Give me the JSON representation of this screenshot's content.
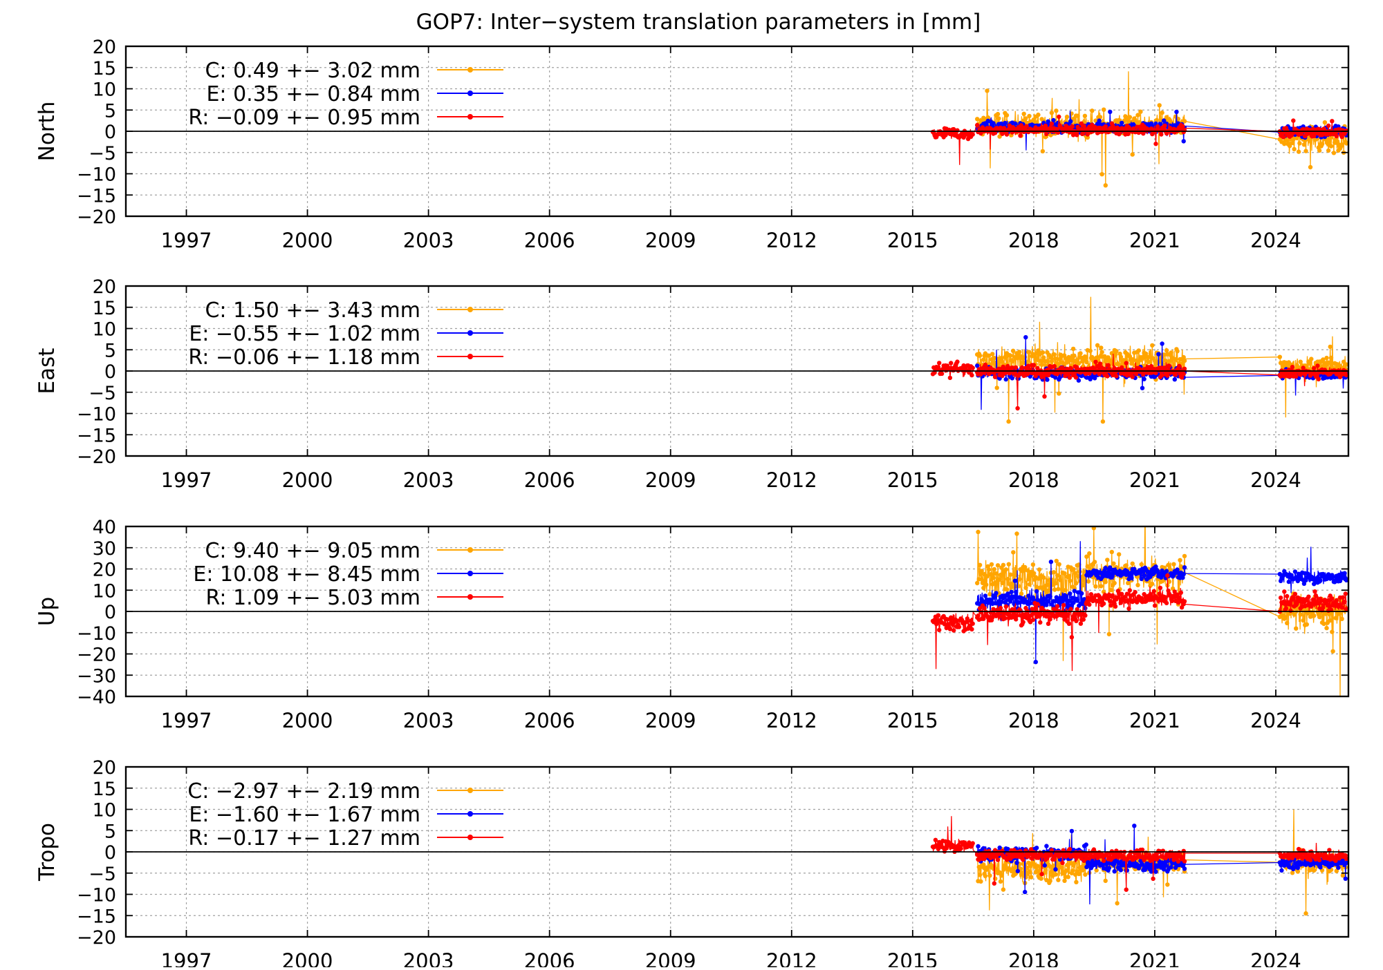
{
  "figure_title": "GOP7: Inter−system translation parameters in [mm]",
  "colors": {
    "C": "#ffa500",
    "E": "#0000ff",
    "R": "#ff0000",
    "axis": "#000000",
    "grid": "#a0a0a0"
  },
  "x_axis": {
    "range": [
      1995.5,
      2025.8
    ],
    "ticks": [
      1997,
      2000,
      2003,
      2006,
      2009,
      2012,
      2015,
      2018,
      2021,
      2024
    ],
    "tick_labels": [
      "1997",
      "2000",
      "2003",
      "2006",
      "2009",
      "2012",
      "2015",
      "2018",
      "2021",
      "2024"
    ]
  },
  "chart_data": [
    {
      "type": "line",
      "ylabel": "North",
      "ylim": [
        -20,
        20
      ],
      "yticks": [
        20,
        15,
        10,
        5,
        0,
        -5,
        -10,
        -15,
        -20
      ],
      "ytick_labels": [
        "20",
        "15",
        "10",
        "5",
        "0",
        "−5",
        "−10",
        "−15",
        "−20"
      ],
      "series": [
        {
          "key": "C",
          "legend": "C:   0.49 +− 3.02 mm",
          "mean": 0.49,
          "std": 3.02,
          "segments": [
            {
              "x0": 2016.6,
              "x1": 2021.75,
              "center": 1.5,
              "spread": 2.5
            },
            {
              "x0": 2024.1,
              "x1": 2025.75,
              "center": -2.0,
              "spread": 3.0
            }
          ]
        },
        {
          "key": "E",
          "legend": "E:   0.35 +− 0.84 mm",
          "mean": 0.35,
          "std": 0.84,
          "segments": [
            {
              "x0": 2016.6,
              "x1": 2021.75,
              "center": 1.0,
              "spread": 1.2
            },
            {
              "x0": 2024.1,
              "x1": 2025.75,
              "center": 0.0,
              "spread": 1.0
            }
          ]
        },
        {
          "key": "R",
          "legend": "R:  −0.09 +− 0.95 mm",
          "mean": -0.09,
          "std": 0.95,
          "segments": [
            {
              "x0": 2015.5,
              "x1": 2016.5,
              "center": -0.5,
              "spread": 1.1
            },
            {
              "x0": 2016.6,
              "x1": 2021.75,
              "center": 0.3,
              "spread": 1.0
            },
            {
              "x0": 2024.1,
              "x1": 2025.75,
              "center": -0.3,
              "spread": 1.0
            }
          ]
        }
      ]
    },
    {
      "type": "line",
      "ylabel": "East",
      "ylim": [
        -20,
        20
      ],
      "yticks": [
        20,
        15,
        10,
        5,
        0,
        -5,
        -10,
        -15,
        -20
      ],
      "ytick_labels": [
        "20",
        "15",
        "10",
        "5",
        "0",
        "−5",
        "−10",
        "−15",
        "−20"
      ],
      "series": [
        {
          "key": "C",
          "legend": "C:   1.50 +− 3.43 mm",
          "mean": 1.5,
          "std": 3.43,
          "segments": [
            {
              "x0": 2016.6,
              "x1": 2021.75,
              "center": 2.5,
              "spread": 3.0
            },
            {
              "x0": 2024.1,
              "x1": 2025.75,
              "center": 1.0,
              "spread": 2.0
            }
          ]
        },
        {
          "key": "E",
          "legend": "E:  −0.55 +− 1.02 mm",
          "mean": -0.55,
          "std": 1.02,
          "segments": [
            {
              "x0": 2016.6,
              "x1": 2021.75,
              "center": -0.5,
              "spread": 1.2
            },
            {
              "x0": 2024.1,
              "x1": 2025.75,
              "center": -0.8,
              "spread": 0.9
            }
          ]
        },
        {
          "key": "R",
          "legend": "R:  −0.06 +− 1.18 mm",
          "mean": -0.06,
          "std": 1.18,
          "segments": [
            {
              "x0": 2015.5,
              "x1": 2016.5,
              "center": 0.5,
              "spread": 1.4
            },
            {
              "x0": 2016.6,
              "x1": 2021.75,
              "center": 0.0,
              "spread": 1.3
            },
            {
              "x0": 2024.1,
              "x1": 2025.75,
              "center": -0.3,
              "spread": 1.0
            }
          ]
        }
      ]
    },
    {
      "type": "line",
      "ylabel": "Up",
      "ylim": [
        -40,
        40
      ],
      "yticks": [
        40,
        30,
        20,
        10,
        0,
        -10,
        -20,
        -30,
        -40
      ],
      "ytick_labels": [
        "40",
        "30",
        "20",
        "10",
        "0",
        "−10",
        "−20",
        "−30",
        "−40"
      ],
      "series": [
        {
          "key": "C",
          "legend": "C:   9.40 +− 9.05 mm",
          "mean": 9.4,
          "std": 9.05,
          "segments": [
            {
              "x0": 2016.6,
              "x1": 2019.3,
              "center": 15.0,
              "spread": 8.0
            },
            {
              "x0": 2019.3,
              "x1": 2021.75,
              "center": 18.0,
              "spread": 7.0
            },
            {
              "x0": 2024.1,
              "x1": 2025.75,
              "center": 0.0,
              "spread": 7.0
            }
          ]
        },
        {
          "key": "E",
          "legend": "E: 10.08 +− 8.45 mm",
          "mean": 10.08,
          "std": 8.45,
          "segments": [
            {
              "x0": 2016.6,
              "x1": 2019.3,
              "center": 5.0,
              "spread": 4.0
            },
            {
              "x0": 2019.3,
              "x1": 2021.75,
              "center": 18.0,
              "spread": 2.5
            },
            {
              "x0": 2024.1,
              "x1": 2025.75,
              "center": 16.0,
              "spread": 2.5
            }
          ]
        },
        {
          "key": "R",
          "legend": "R:   1.09 +− 5.03 mm",
          "mean": 1.09,
          "std": 5.03,
          "segments": [
            {
              "x0": 2015.5,
              "x1": 2016.5,
              "center": -5.0,
              "spread": 4.0
            },
            {
              "x0": 2016.6,
              "x1": 2019.3,
              "center": -1.0,
              "spread": 4.0
            },
            {
              "x0": 2019.3,
              "x1": 2021.75,
              "center": 6.0,
              "spread": 3.5
            },
            {
              "x0": 2024.1,
              "x1": 2025.75,
              "center": 4.0,
              "spread": 3.5
            }
          ]
        }
      ]
    },
    {
      "type": "line",
      "ylabel": "Tropo",
      "ylim": [
        -20,
        20
      ],
      "yticks": [
        20,
        15,
        10,
        5,
        0,
        -5,
        -10,
        -15,
        -20
      ],
      "ytick_labels": [
        "20",
        "15",
        "10",
        "5",
        "0",
        "−5",
        "−10",
        "−15",
        "−20"
      ],
      "series": [
        {
          "key": "C",
          "legend": "C:  −2.97 +− 2.19 mm",
          "mean": -2.97,
          "std": 2.19,
          "segments": [
            {
              "x0": 2016.6,
              "x1": 2019.3,
              "center": -4.0,
              "spread": 3.0
            },
            {
              "x0": 2019.3,
              "x1": 2021.75,
              "center": -2.5,
              "spread": 2.0
            },
            {
              "x0": 2024.1,
              "x1": 2025.75,
              "center": -2.5,
              "spread": 2.5
            }
          ]
        },
        {
          "key": "E",
          "legend": "E:  −1.60 +− 1.67 mm",
          "mean": -1.6,
          "std": 1.67,
          "segments": [
            {
              "x0": 2016.6,
              "x1": 2019.3,
              "center": -0.5,
              "spread": 1.5
            },
            {
              "x0": 2019.3,
              "x1": 2021.75,
              "center": -3.0,
              "spread": 1.3
            },
            {
              "x0": 2024.1,
              "x1": 2025.75,
              "center": -2.5,
              "spread": 1.3
            }
          ]
        },
        {
          "key": "R",
          "legend": "R:  −0.17 +− 1.27 mm",
          "mean": -0.17,
          "std": 1.27,
          "segments": [
            {
              "x0": 2015.5,
              "x1": 2016.5,
              "center": 1.5,
              "spread": 1.2
            },
            {
              "x0": 2016.6,
              "x1": 2021.75,
              "center": -0.8,
              "spread": 1.2
            },
            {
              "x0": 2024.1,
              "x1": 2025.75,
              "center": -1.0,
              "spread": 1.0
            }
          ]
        }
      ]
    }
  ]
}
